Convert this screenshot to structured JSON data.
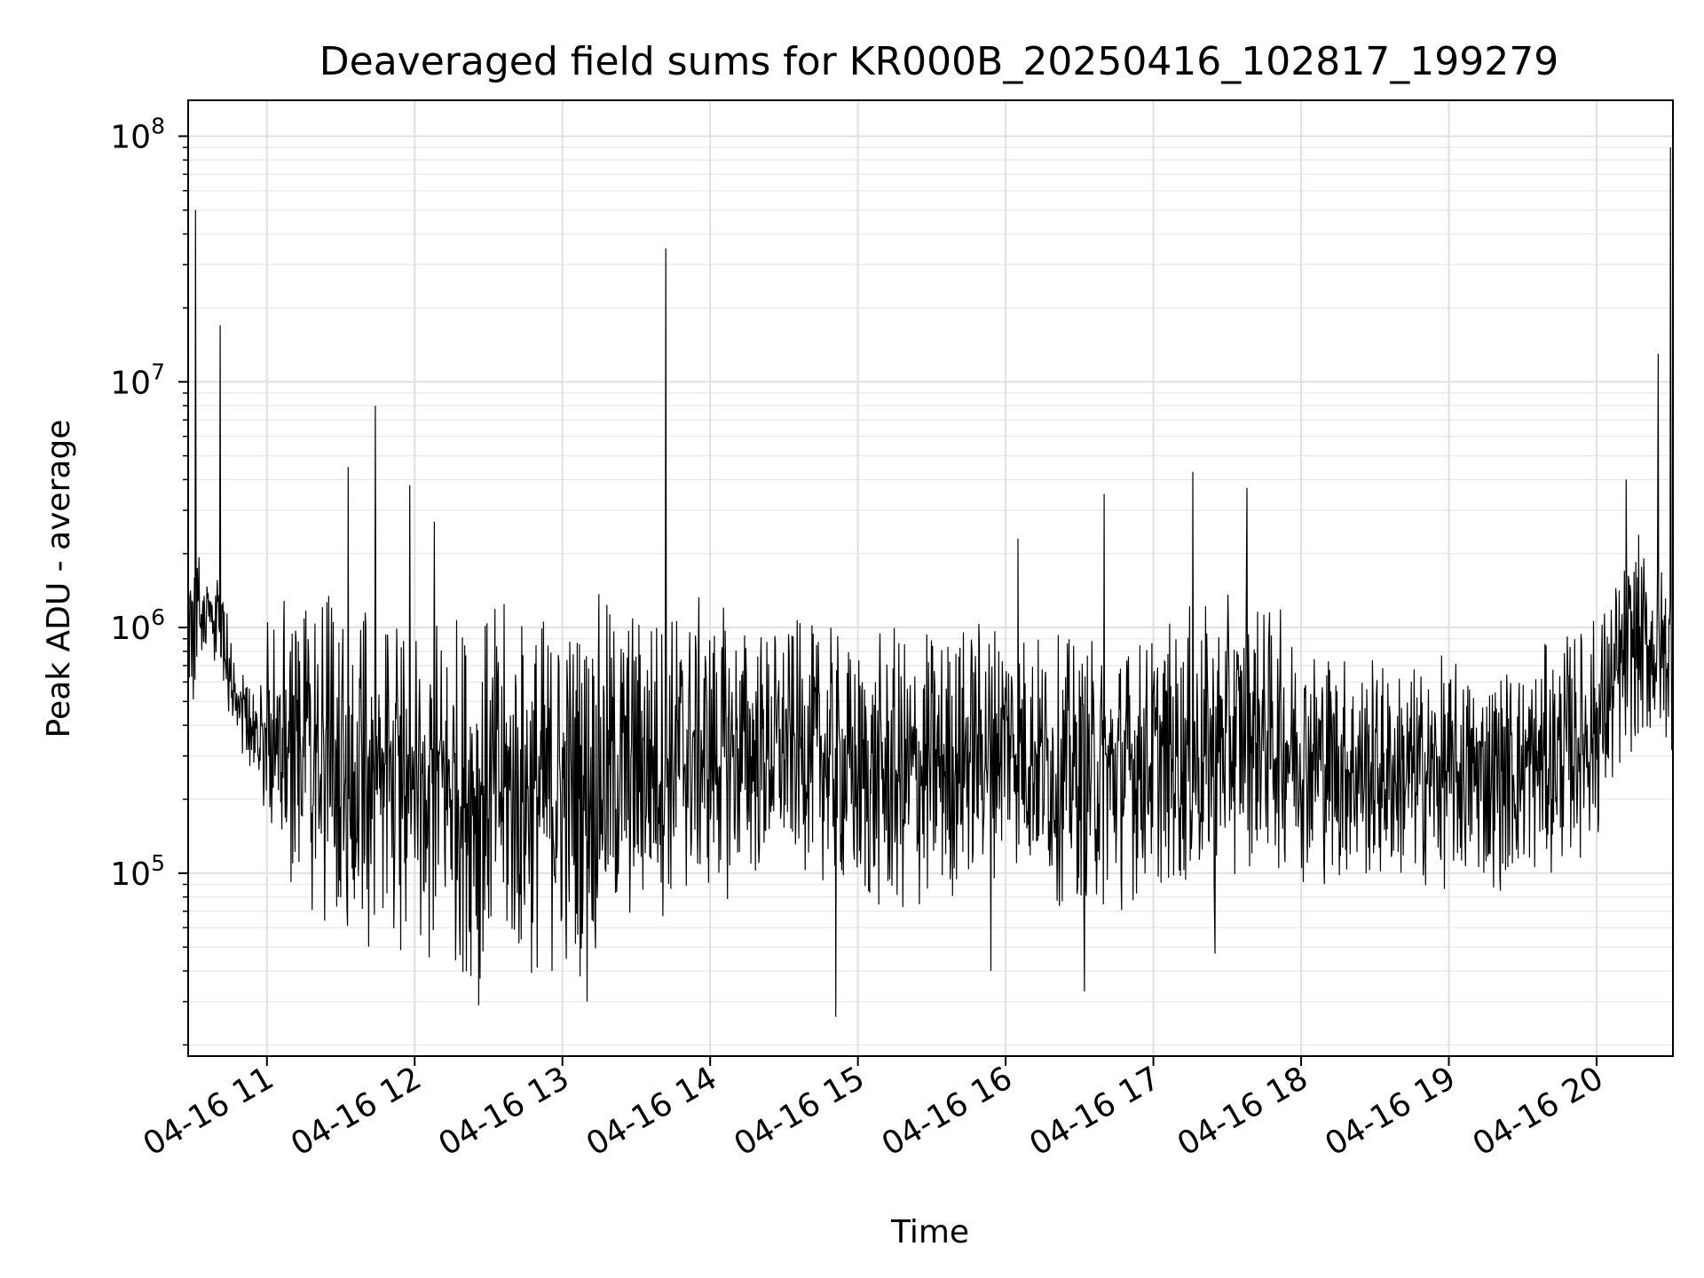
{
  "chart_data": {
    "type": "line",
    "title": "Deaveraged field sums for KR000B_20250416_102817_199279",
    "xlabel": "Time",
    "ylabel": "Peak ADU - average",
    "yscale": "log",
    "ylim": [
      18000,
      140000000
    ],
    "xlim": [
      "2025-04-16 10:28",
      "2025-04-16 20:31"
    ],
    "grid": true,
    "x_ticks": [
      {
        "label": "04-16 11",
        "value": "2025-04-16 11:00"
      },
      {
        "label": "04-16 12",
        "value": "2025-04-16 12:00"
      },
      {
        "label": "04-16 13",
        "value": "2025-04-16 13:00"
      },
      {
        "label": "04-16 14",
        "value": "2025-04-16 14:00"
      },
      {
        "label": "04-16 15",
        "value": "2025-04-16 15:00"
      },
      {
        "label": "04-16 16",
        "value": "2025-04-16 16:00"
      },
      {
        "label": "04-16 17",
        "value": "2025-04-16 17:00"
      },
      {
        "label": "04-16 18",
        "value": "2025-04-16 18:00"
      },
      {
        "label": "04-16 19",
        "value": "2025-04-16 19:00"
      },
      {
        "label": "04-16 20",
        "value": "2025-04-16 20:00"
      }
    ],
    "y_ticks": [
      {
        "base": "10",
        "exp": "5",
        "value": 100000
      },
      {
        "base": "10",
        "exp": "6",
        "value": 1000000
      },
      {
        "base": "10",
        "exp": "7",
        "value": 10000000
      },
      {
        "base": "10",
        "exp": "8",
        "value": 100000000
      }
    ],
    "line_color": "#000000",
    "envelope": [
      {
        "t": "2025-04-16 10:28",
        "low": 400000,
        "high": 2500000
      },
      {
        "t": "2025-04-16 10:35",
        "low": 800000,
        "high": 1800000
      },
      {
        "t": "2025-04-16 10:42",
        "low": 600000,
        "high": 1500000
      },
      {
        "t": "2025-04-16 10:48",
        "low": 300000,
        "high": 700000
      },
      {
        "t": "2025-04-16 10:55",
        "low": 180000,
        "high": 600000
      },
      {
        "t": "2025-04-16 11:00",
        "low": 90000,
        "high": 1500000
      },
      {
        "t": "2025-04-16 11:15",
        "low": 70000,
        "high": 1500000
      },
      {
        "t": "2025-04-16 11:30",
        "low": 55000,
        "high": 1400000
      },
      {
        "t": "2025-04-16 11:45",
        "low": 45000,
        "high": 1400000
      },
      {
        "t": "2025-04-16 12:00",
        "low": 40000,
        "high": 1400000
      },
      {
        "t": "2025-04-16 12:20",
        "low": 35000,
        "high": 1400000
      },
      {
        "t": "2025-04-16 12:40",
        "low": 32000,
        "high": 1400000
      },
      {
        "t": "2025-04-16 13:00",
        "low": 32000,
        "high": 1400000
      },
      {
        "t": "2025-04-16 13:15",
        "low": 40000,
        "high": 1500000
      },
      {
        "t": "2025-04-16 13:40",
        "low": 60000,
        "high": 1500000
      },
      {
        "t": "2025-04-16 14:00",
        "low": 70000,
        "high": 1400000
      },
      {
        "t": "2025-04-16 14:20",
        "low": 80000,
        "high": 1200000
      },
      {
        "t": "2025-04-16 14:40",
        "low": 100000,
        "high": 1100000
      },
      {
        "t": "2025-04-16 15:00",
        "low": 60000,
        "high": 1000000
      },
      {
        "t": "2025-04-16 15:20",
        "low": 55000,
        "high": 1100000
      },
      {
        "t": "2025-04-16 15:40",
        "low": 70000,
        "high": 1200000
      },
      {
        "t": "2025-04-16 16:00",
        "low": 100000,
        "high": 1400000
      },
      {
        "t": "2025-04-16 16:20",
        "low": 70000,
        "high": 1000000
      },
      {
        "t": "2025-04-16 16:40",
        "low": 60000,
        "high": 1000000
      },
      {
        "t": "2025-04-16 17:00",
        "low": 80000,
        "high": 1100000
      },
      {
        "t": "2025-04-16 17:20",
        "low": 70000,
        "high": 1300000
      },
      {
        "t": "2025-04-16 17:40",
        "low": 100000,
        "high": 1500000
      },
      {
        "t": "2025-04-16 18:00",
        "low": 90000,
        "high": 1100000
      },
      {
        "t": "2025-04-16 18:20",
        "low": 80000,
        "high": 900000
      },
      {
        "t": "2025-04-16 18:40",
        "low": 80000,
        "high": 800000
      },
      {
        "t": "2025-04-16 19:00",
        "low": 80000,
        "high": 800000
      },
      {
        "t": "2025-04-16 19:20",
        "low": 80000,
        "high": 800000
      },
      {
        "t": "2025-04-16 19:40",
        "low": 90000,
        "high": 900000
      },
      {
        "t": "2025-04-16 20:00",
        "low": 120000,
        "high": 1300000
      },
      {
        "t": "2025-04-16 20:15",
        "low": 300000,
        "high": 2500000
      },
      {
        "t": "2025-04-16 20:31",
        "low": 300000,
        "high": 2000000
      }
    ],
    "spikes": [
      {
        "t": "2025-04-16 10:31",
        "y": 50000000
      },
      {
        "t": "2025-04-16 10:41",
        "y": 17000000
      },
      {
        "t": "2025-04-16 11:33",
        "y": 4500000
      },
      {
        "t": "2025-04-16 11:44",
        "y": 8000000
      },
      {
        "t": "2025-04-16 11:58",
        "y": 3800000
      },
      {
        "t": "2025-04-16 12:08",
        "y": 2700000
      },
      {
        "t": "2025-04-16 13:42",
        "y": 35000000
      },
      {
        "t": "2025-04-16 16:05",
        "y": 2300000
      },
      {
        "t": "2025-04-16 16:40",
        "y": 3500000
      },
      {
        "t": "2025-04-16 17:16",
        "y": 4300000
      },
      {
        "t": "2025-04-16 17:38",
        "y": 3700000
      },
      {
        "t": "2025-04-16 20:12",
        "y": 4000000
      },
      {
        "t": "2025-04-16 20:25",
        "y": 13000000
      },
      {
        "t": "2025-04-16 20:30",
        "y": 90000000
      }
    ],
    "dips": [
      {
        "t": "2025-04-16 14:51",
        "y": 26000
      },
      {
        "t": "2025-04-16 12:26",
        "y": 29000
      },
      {
        "t": "2025-04-16 13:10",
        "y": 30000
      },
      {
        "t": "2025-04-16 15:54",
        "y": 40000
      },
      {
        "t": "2025-04-16 16:32",
        "y": 33000
      },
      {
        "t": "2025-04-16 17:25",
        "y": 47000
      }
    ]
  }
}
